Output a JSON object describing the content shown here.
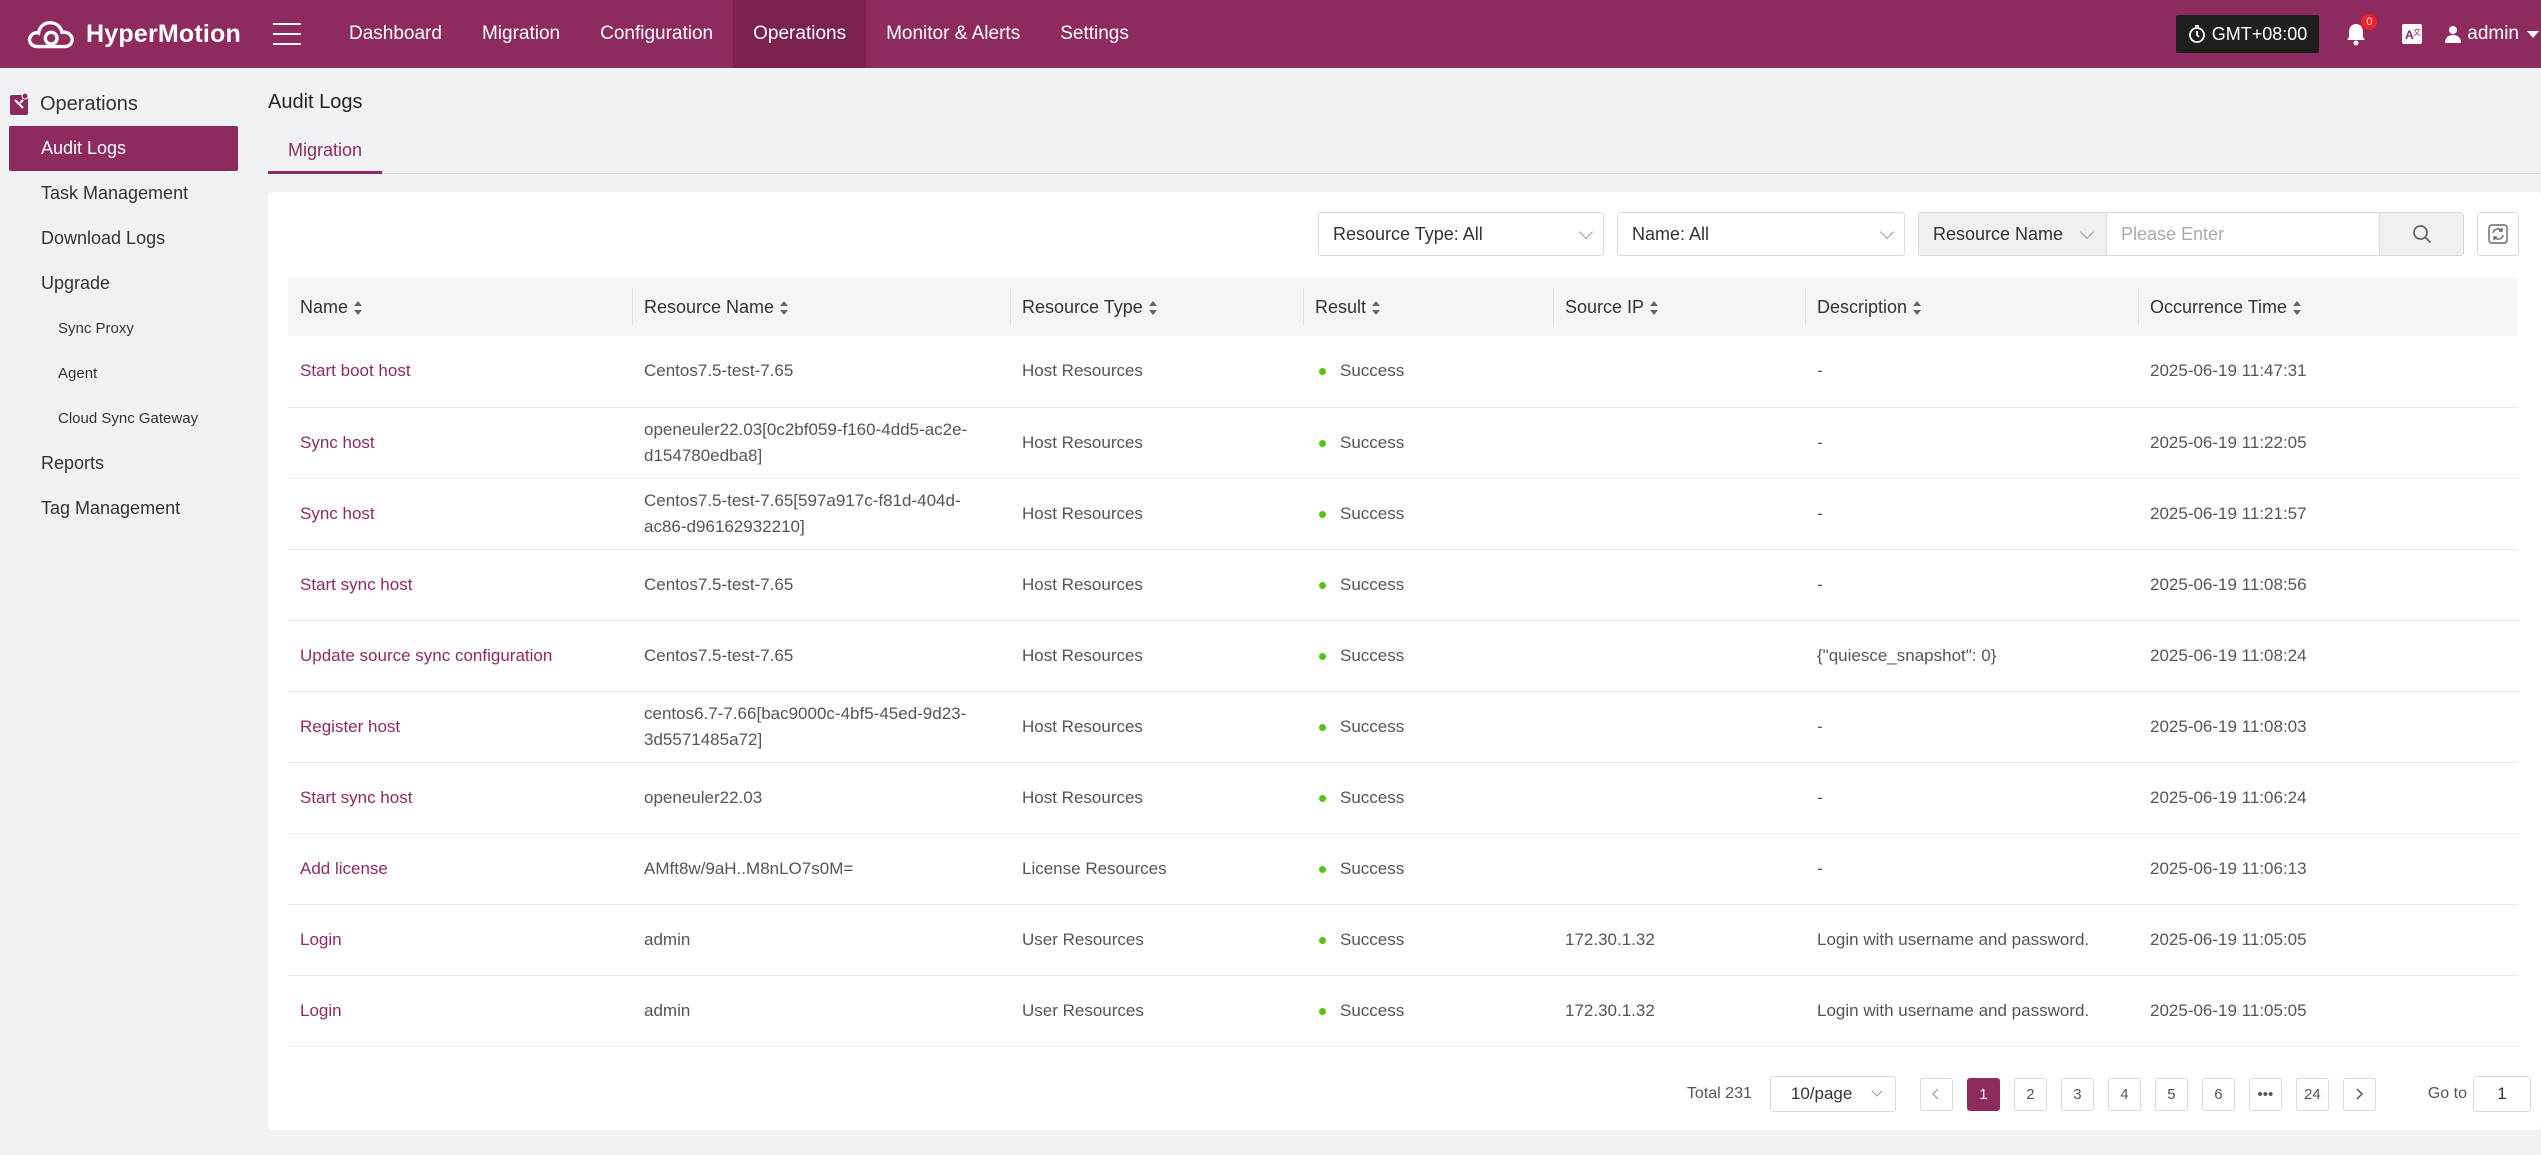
{
  "app": {
    "name": "HyperMotion"
  },
  "nav": [
    {
      "label": "Dashboard",
      "active": false
    },
    {
      "label": "Migration",
      "active": false
    },
    {
      "label": "Configuration",
      "active": false
    },
    {
      "label": "Operations",
      "active": true
    },
    {
      "label": "Monitor & Alerts",
      "active": false
    },
    {
      "label": "Settings",
      "active": false
    }
  ],
  "header": {
    "timezone": "GMT+08:00",
    "notifications": "0",
    "user": "admin"
  },
  "sidebar": {
    "title": "Operations",
    "items": [
      {
        "label": "Audit Logs",
        "level": 1,
        "active": true
      },
      {
        "label": "Task Management",
        "level": 1
      },
      {
        "label": "Download Logs",
        "level": 1
      },
      {
        "label": "Upgrade",
        "level": 1
      },
      {
        "label": "Sync Proxy",
        "level": 2
      },
      {
        "label": "Agent",
        "level": 2
      },
      {
        "label": "Cloud Sync Gateway",
        "level": 2
      },
      {
        "label": "Reports",
        "level": 1
      },
      {
        "label": "Tag Management",
        "level": 1
      }
    ]
  },
  "page": {
    "title": "Audit Logs",
    "tab": "Migration"
  },
  "filters": {
    "resource_type": "Resource Type: All",
    "name": "Name: All",
    "search_field": "Resource Name",
    "search_placeholder": "Please Enter"
  },
  "table": {
    "columns": [
      "Name",
      "Resource Name",
      "Resource Type",
      "Result",
      "Source IP",
      "Description",
      "Occurrence Time"
    ],
    "rows": [
      {
        "name": "Start boot host",
        "resource_name": "Centos7.5-test-7.65",
        "resource_type": "Host Resources",
        "result": "Success",
        "source_ip": "",
        "description": "-",
        "time": "2025-06-19 11:47:31"
      },
      {
        "name": "Sync host",
        "resource_name": "openeuler22.03[0c2bf059-f160-4dd5-ac2e-d154780edba8]",
        "resource_type": "Host Resources",
        "result": "Success",
        "source_ip": "",
        "description": "-",
        "time": "2025-06-19 11:22:05"
      },
      {
        "name": "Sync host",
        "resource_name": "Centos7.5-test-7.65[597a917c-f81d-404d-ac86-d96162932210]",
        "resource_type": "Host Resources",
        "result": "Success",
        "source_ip": "",
        "description": "-",
        "time": "2025-06-19 11:21:57"
      },
      {
        "name": "Start sync host",
        "resource_name": "Centos7.5-test-7.65",
        "resource_type": "Host Resources",
        "result": "Success",
        "source_ip": "",
        "description": "-",
        "time": "2025-06-19 11:08:56"
      },
      {
        "name": "Update source sync configuration",
        "resource_name": "Centos7.5-test-7.65",
        "resource_type": "Host Resources",
        "result": "Success",
        "source_ip": "",
        "description": "{\"quiesce_snapshot\": 0}",
        "time": "2025-06-19 11:08:24"
      },
      {
        "name": "Register host",
        "resource_name": "centos6.7-7.66[bac9000c-4bf5-45ed-9d23-3d5571485a72]",
        "resource_type": "Host Resources",
        "result": "Success",
        "source_ip": "",
        "description": "-",
        "time": "2025-06-19 11:08:03"
      },
      {
        "name": "Start sync host",
        "resource_name": "openeuler22.03",
        "resource_type": "Host Resources",
        "result": "Success",
        "source_ip": "",
        "description": "-",
        "time": "2025-06-19 11:06:24"
      },
      {
        "name": "Add license",
        "resource_name": "AMft8w/9aH..M8nLO7s0M=",
        "resource_type": "License Resources",
        "result": "Success",
        "source_ip": "",
        "description": "-",
        "time": "2025-06-19 11:06:13"
      },
      {
        "name": "Login",
        "resource_name": "admin",
        "resource_type": "User Resources",
        "result": "Success",
        "source_ip": "172.30.1.32",
        "description": "Login with username and password.",
        "time": "2025-06-19 11:05:05"
      },
      {
        "name": "Login",
        "resource_name": "admin",
        "resource_type": "User Resources",
        "result": "Success",
        "source_ip": "172.30.1.32",
        "description": "Login with username and password.",
        "time": "2025-06-19 11:05:05"
      }
    ]
  },
  "pagination": {
    "total": "Total 231",
    "page_size": "10/page",
    "pages": [
      "1",
      "2",
      "3",
      "4",
      "5",
      "6",
      "•••",
      "24"
    ],
    "current": "1",
    "goto_label": "Go to",
    "goto_value": "1"
  },
  "colors": {
    "brand": "#8f2a5e",
    "success": "#52c41a"
  }
}
